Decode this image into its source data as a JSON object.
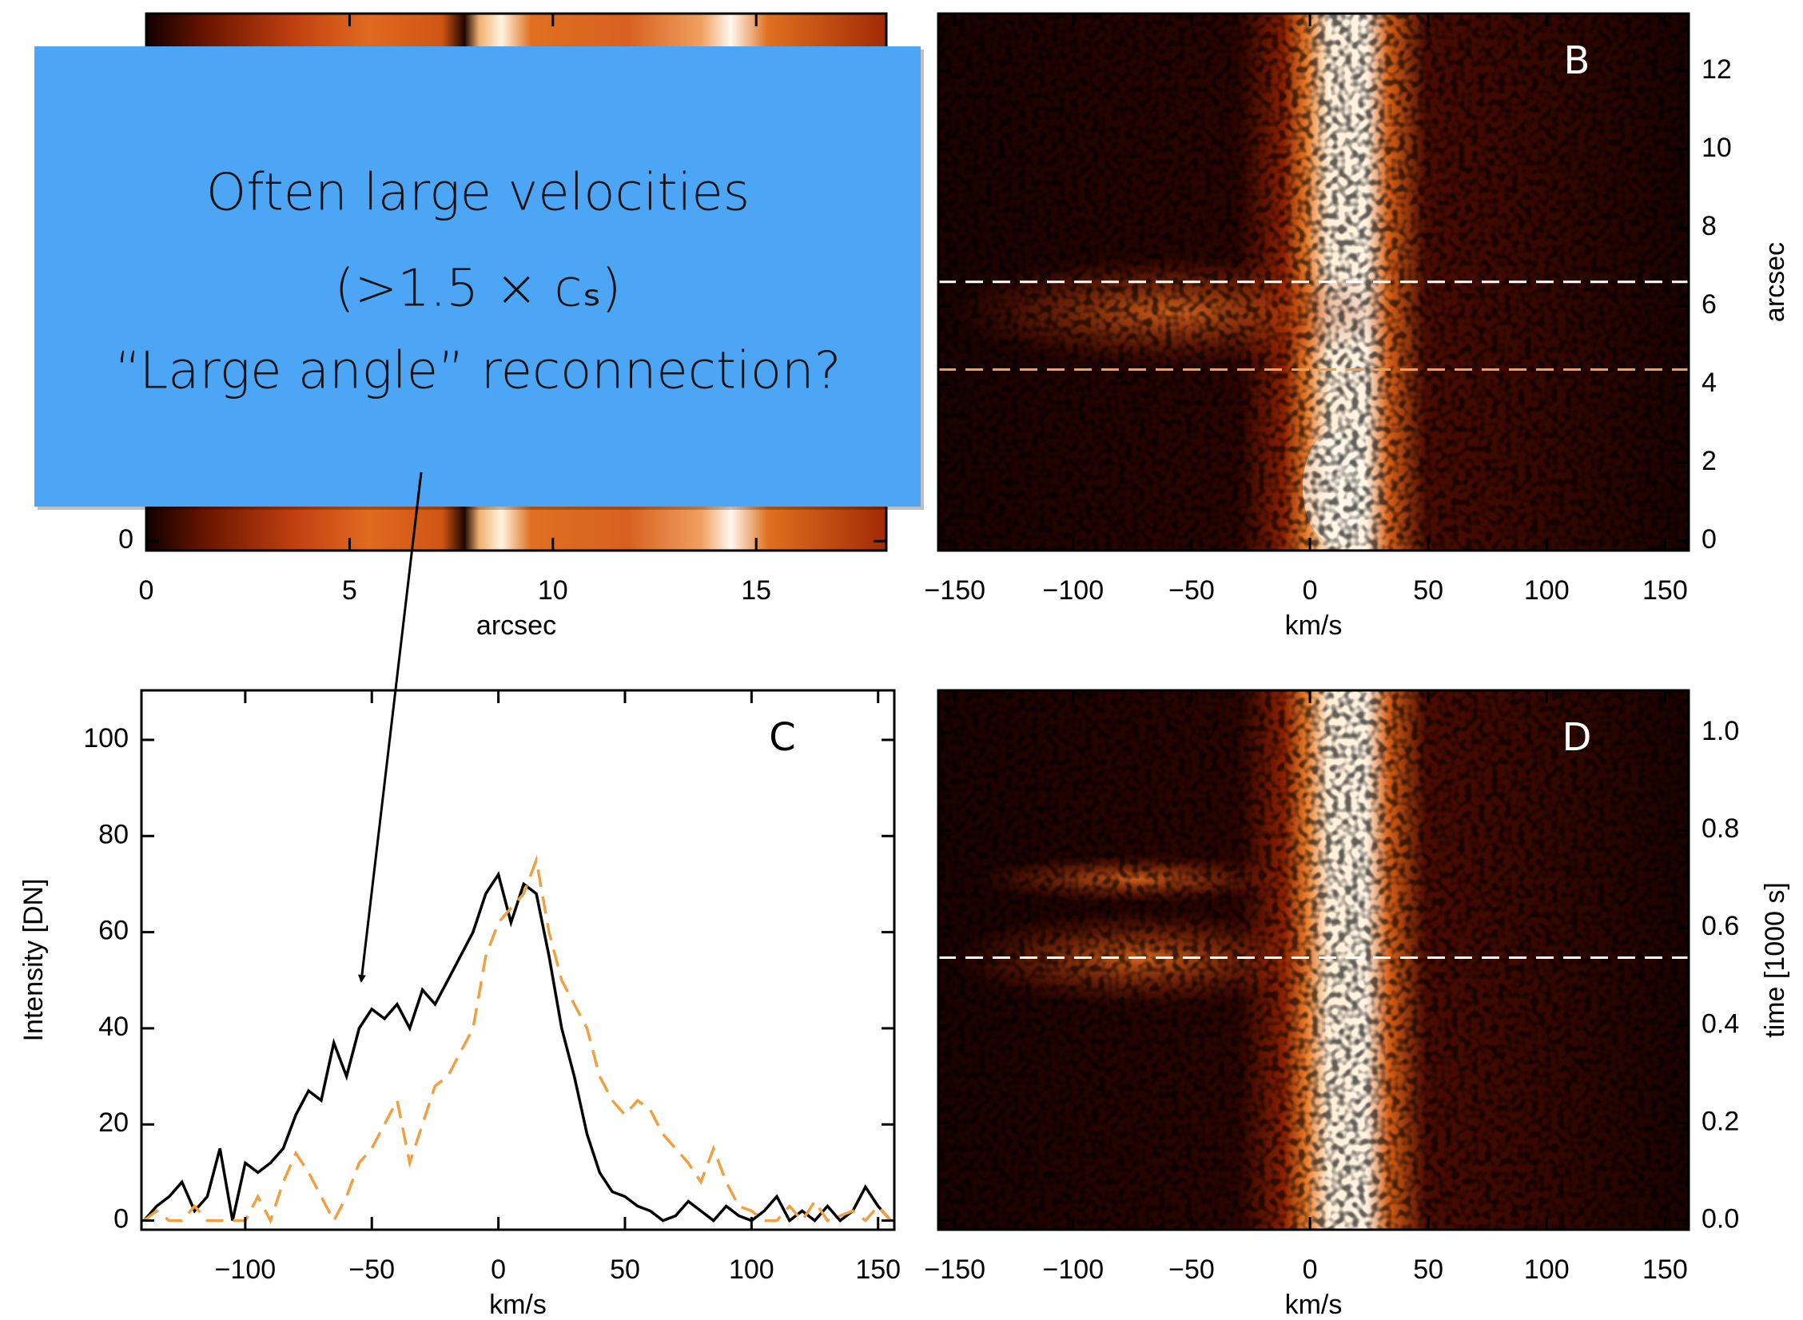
{
  "chart_data": [
    {
      "type": "heatmap",
      "xlabel": "arcsec",
      "xlim": [
        0,
        18.2
      ],
      "xticks": [
        0,
        5,
        10,
        15
      ],
      "ylim": [
        -0.24,
        13.47
      ],
      "yticks": [
        0
      ],
      "y_axis_side": "left"
    },
    {
      "type": "heatmap",
      "label": "B",
      "xlabel": "km/s",
      "ylabel": "arcsec",
      "xlim": [
        -157,
        160
      ],
      "xticks": [
        {
          "value": -150,
          "label": "−150"
        },
        {
          "value": -100,
          "label": "−100"
        },
        {
          "value": -50,
          "label": "−50"
        },
        0,
        50,
        100,
        150
      ],
      "ylim": [
        -0.24,
        13.47
      ],
      "yticks": [
        0,
        2,
        4,
        6,
        8,
        10,
        12
      ],
      "y_axis_side": "right",
      "hlines": [
        {
          "value": 6.62,
          "color": "#ffffff"
        },
        {
          "value": 4.38,
          "color": "#f0a050"
        }
      ]
    },
    {
      "type": "line",
      "label": "C",
      "xlabel": "km/s",
      "ylabel": "Intensity [DN]",
      "xlim": [
        -141,
        156.4
      ],
      "xticks": [
        {
          "value": -100,
          "label": "−100"
        },
        {
          "value": -50,
          "label": "−50"
        },
        0,
        50,
        100,
        150
      ],
      "ylim": [
        -1.9,
        110.3
      ],
      "yticks": [
        0,
        20,
        40,
        60,
        80,
        100
      ],
      "y_axis_side": "left",
      "x": [
        -140,
        -135,
        -130,
        -125,
        -120,
        -115,
        -110,
        -105,
        -100,
        -95,
        -90,
        -85,
        -80,
        -75,
        -70,
        -65,
        -60,
        -55,
        -50,
        -45,
        -40,
        -35,
        -30,
        -25,
        -20,
        -15,
        -10,
        -5,
        0,
        5,
        10,
        15,
        20,
        25,
        30,
        35,
        40,
        45,
        50,
        55,
        60,
        65,
        70,
        75,
        80,
        85,
        90,
        95,
        100,
        105,
        110,
        115,
        120,
        125,
        130,
        135,
        140,
        145,
        150,
        155
      ],
      "series": [
        {
          "color": "#000000",
          "dash": false,
          "values": [
            0,
            3,
            5,
            8,
            2,
            5,
            15,
            0,
            12,
            10,
            12,
            15,
            22,
            27,
            25,
            37,
            30,
            40,
            44,
            42,
            45,
            40,
            48,
            45,
            50,
            55,
            60,
            68,
            72,
            62,
            70,
            68,
            55,
            40,
            30,
            18,
            10,
            6,
            5,
            3,
            2,
            0,
            1,
            4,
            2,
            0,
            3,
            1,
            0,
            2,
            5,
            0,
            2,
            0,
            3,
            0,
            2,
            7,
            3,
            0
          ]
        },
        {
          "color": "#f0a040",
          "dash": true,
          "values": [
            0,
            2,
            0,
            0,
            3,
            0,
            0,
            0,
            0,
            5,
            0,
            8,
            14,
            10,
            5,
            0,
            5,
            12,
            15,
            20,
            25,
            12,
            20,
            28,
            30,
            35,
            40,
            55,
            62,
            65,
            68,
            75,
            60,
            50,
            45,
            40,
            30,
            25,
            22,
            25,
            23,
            18,
            15,
            12,
            8,
            15,
            8,
            3,
            2,
            0,
            0,
            3,
            0,
            4,
            0,
            1,
            2,
            0,
            3,
            0
          ]
        }
      ]
    },
    {
      "type": "heatmap",
      "label": "D",
      "xlabel": "km/s",
      "ylabel": "time [1000 s]",
      "xlim": [
        -157,
        160
      ],
      "xticks": [
        {
          "value": -150,
          "label": "−150"
        },
        {
          "value": -100,
          "label": "−100"
        },
        {
          "value": -50,
          "label": "−50"
        },
        0,
        50,
        100,
        150
      ],
      "ylim": [
        -0.019,
        1.087
      ],
      "yticks": [
        {
          "value": 0,
          "label": "0.0"
        },
        0.2,
        0.4,
        0.6,
        0.8,
        {
          "value": 1,
          "label": "1.0"
        }
      ],
      "y_axis_side": "right",
      "hlines": [
        {
          "value": 0.539,
          "color": "#ffffff"
        }
      ]
    }
  ],
  "callout": {
    "lines": [
      "Often large velocities",
      "(>1.5 × cₛ)",
      "“Large angle” reconnection?"
    ]
  }
}
